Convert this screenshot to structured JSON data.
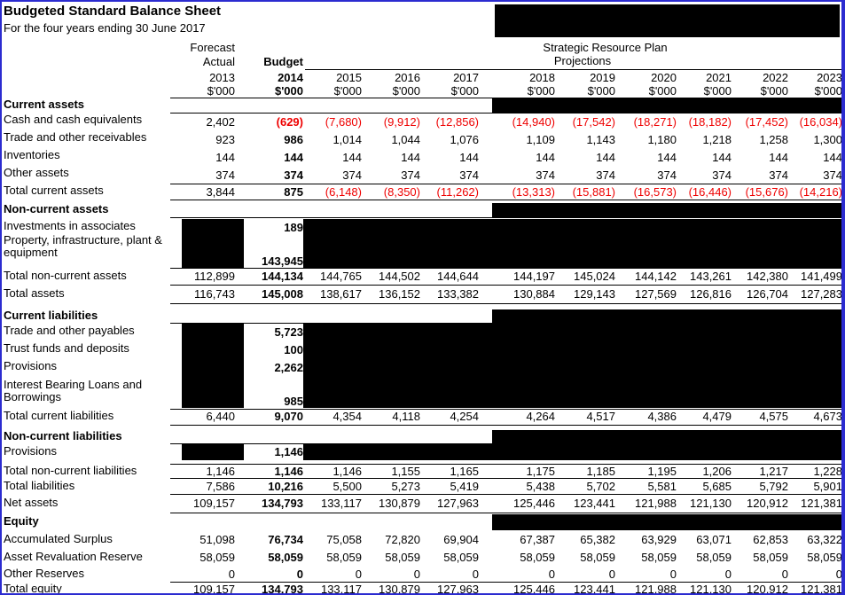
{
  "title": "Budgeted Standard Balance Sheet",
  "subtitle": "For the four years ending 30 June 2017",
  "columns": {
    "forecast_label_top": "Forecast",
    "forecast_label_bottom": "Actual",
    "budget_label": "Budget",
    "srp_label": "Strategic Resource Plan",
    "srp_sublabel": "Projections",
    "years": [
      "2013",
      "2014",
      "2015",
      "2016",
      "2017",
      "2018",
      "2019",
      "2020",
      "2021",
      "2022",
      "2023"
    ],
    "unit": "$'000"
  },
  "colors": {
    "negative_text": "#ee0000",
    "frame_border": "#2b2bd0",
    "redaction": "#000000"
  },
  "rows": [
    {
      "type": "section",
      "label": "Current assets"
    },
    {
      "type": "data",
      "label": "Cash and cash equivalents",
      "values": [
        "2,402",
        "(629)",
        "(7,680)",
        "(9,912)",
        "(12,856)",
        "(14,940)",
        "(17,542)",
        "(18,271)",
        "(18,182)",
        "(17,452)",
        "(16,034)"
      ]
    },
    {
      "type": "data",
      "label": "Trade and other receivables",
      "values": [
        "923",
        "986",
        "1,014",
        "1,044",
        "1,076",
        "1,109",
        "1,143",
        "1,180",
        "1,218",
        "1,258",
        "1,300"
      ]
    },
    {
      "type": "data",
      "label": "Inventories",
      "values": [
        "144",
        "144",
        "144",
        "144",
        "144",
        "144",
        "144",
        "144",
        "144",
        "144",
        "144"
      ]
    },
    {
      "type": "data",
      "label": "Other assets",
      "values": [
        "374",
        "374",
        "374",
        "374",
        "374",
        "374",
        "374",
        "374",
        "374",
        "374",
        "374"
      ]
    },
    {
      "type": "total",
      "label": "Total current assets",
      "values": [
        "3,844",
        "875",
        "(6,148)",
        "(8,350)",
        "(11,262)",
        "(13,313)",
        "(15,881)",
        "(16,573)",
        "(16,446)",
        "(15,676)",
        "(14,216)"
      ]
    },
    {
      "type": "section",
      "label": "Non-current assets"
    },
    {
      "type": "data",
      "label": "Investments in associates",
      "redacted": true,
      "values": [
        null,
        "189",
        null,
        null,
        null,
        null,
        null,
        null,
        null,
        null,
        null
      ]
    },
    {
      "type": "data",
      "label": "Property, infrastructure, plant &\nequipment",
      "redacted": true,
      "values": [
        null,
        "143,945",
        null,
        null,
        null,
        null,
        null,
        null,
        null,
        null,
        null
      ]
    },
    {
      "type": "total",
      "label": "Total non-current assets",
      "values": [
        "112,899",
        "144,134",
        "144,765",
        "144,502",
        "144,644",
        "144,197",
        "145,024",
        "144,142",
        "143,261",
        "142,380",
        "141,499"
      ]
    },
    {
      "type": "total",
      "label": "Total assets",
      "values": [
        "116,743",
        "145,008",
        "138,617",
        "136,152",
        "133,382",
        "130,884",
        "129,143",
        "127,569",
        "126,816",
        "126,704",
        "127,283"
      ]
    },
    {
      "type": "section",
      "label": "Current liabilities"
    },
    {
      "type": "data",
      "label": "Trade and other payables",
      "redacted": true,
      "values": [
        null,
        "5,723",
        null,
        null,
        null,
        null,
        null,
        null,
        null,
        null,
        null
      ]
    },
    {
      "type": "data",
      "label": "Trust funds and deposits",
      "redacted": true,
      "values": [
        null,
        "100",
        null,
        null,
        null,
        null,
        null,
        null,
        null,
        null,
        null
      ]
    },
    {
      "type": "data",
      "label": "Provisions",
      "redacted": true,
      "values": [
        null,
        "2,262",
        null,
        null,
        null,
        null,
        null,
        null,
        null,
        null,
        null
      ]
    },
    {
      "type": "data",
      "label": "Interest Bearing Loans and\nBorrowings",
      "redacted": true,
      "values": [
        null,
        "985",
        null,
        null,
        null,
        null,
        null,
        null,
        null,
        null,
        null
      ]
    },
    {
      "type": "total",
      "label": "Total current liabilities",
      "values": [
        "6,440",
        "9,070",
        "4,354",
        "4,118",
        "4,254",
        "4,264",
        "4,517",
        "4,386",
        "4,479",
        "4,575",
        "4,673"
      ]
    },
    {
      "type": "section",
      "label": "Non-current liabilities"
    },
    {
      "type": "data",
      "label": "Provisions",
      "redacted": true,
      "values": [
        null,
        "1,146",
        null,
        null,
        null,
        null,
        null,
        null,
        null,
        null,
        null
      ]
    },
    {
      "type": "total",
      "label": "Total non-current liabilities",
      "values": [
        "1,146",
        "1,146",
        "1,146",
        "1,155",
        "1,165",
        "1,175",
        "1,185",
        "1,195",
        "1,206",
        "1,217",
        "1,228"
      ]
    },
    {
      "type": "total",
      "label": "Total liabilities",
      "values": [
        "7,586",
        "10,216",
        "5,500",
        "5,273",
        "5,419",
        "5,438",
        "5,702",
        "5,581",
        "5,685",
        "5,792",
        "5,901"
      ]
    },
    {
      "type": "total",
      "label": "Net assets",
      "values": [
        "109,157",
        "134,793",
        "133,117",
        "130,879",
        "127,963",
        "125,446",
        "123,441",
        "121,988",
        "121,130",
        "120,912",
        "121,381"
      ]
    },
    {
      "type": "section",
      "label": "Equity"
    },
    {
      "type": "data",
      "label": "Accumulated Surplus",
      "values": [
        "51,098",
        "76,734",
        "75,058",
        "72,820",
        "69,904",
        "67,387",
        "65,382",
        "63,929",
        "63,071",
        "62,853",
        "63,322"
      ]
    },
    {
      "type": "data",
      "label": "Asset Revaluation Reserve",
      "values": [
        "58,059",
        "58,059",
        "58,059",
        "58,059",
        "58,059",
        "58,059",
        "58,059",
        "58,059",
        "58,059",
        "58,059",
        "58,059"
      ]
    },
    {
      "type": "data",
      "label": "Other Reserves",
      "values": [
        "0",
        "0",
        "0",
        "0",
        "0",
        "0",
        "0",
        "0",
        "0",
        "0",
        "0"
      ]
    },
    {
      "type": "total",
      "label": "Total equity",
      "values": [
        "109,157",
        "134,793",
        "133,117",
        "130,879",
        "127,963",
        "125,446",
        "123,441",
        "121,988",
        "121,130",
        "120,912",
        "121,381"
      ]
    }
  ]
}
